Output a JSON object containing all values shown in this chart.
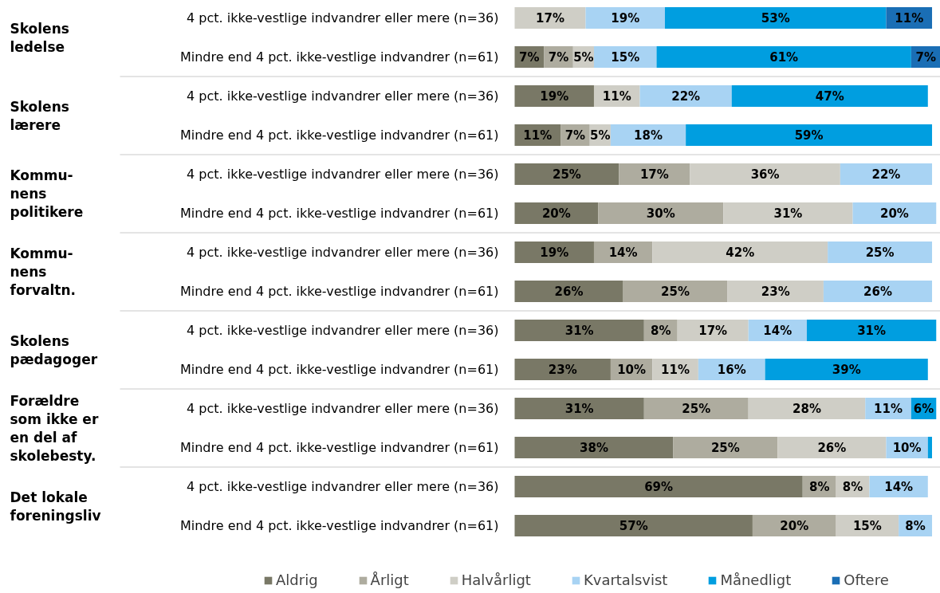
{
  "chart_data": {
    "type": "bar",
    "orientation": "horizontal",
    "stacked": true,
    "legend": "bottom",
    "grid": false,
    "tick_labels": "y",
    "xlim": [
      0,
      102
    ],
    "categories": [
      "4 pct. ikke-vestlige indvandrer eller mere (n=36)",
      "Mindre end 4 pct. ikke-vestlige indvandrer (n=61)",
      "4 pct. ikke-vestlige indvandrer eller mere (n=36)",
      "Mindre end 4 pct. ikke-vestlige indvandrer (n=61)",
      "4 pct. ikke-vestlige indvandrer eller mere (n=36)",
      "Mindre end 4 pct. ikke-vestlige indvandrer (n=61)",
      "4 pct. ikke-vestlige indvandrer eller mere (n=36)",
      "Mindre end 4 pct. ikke-vestlige indvandrer (n=61)",
      "4 pct. ikke-vestlige indvandrer eller mere (n=36)",
      "Mindre end 4 pct. ikke-vestlige indvandrer (n=61)",
      "4 pct. ikke-vestlige indvandrer eller mere (n=36)",
      "Mindre end 4 pct. ikke-vestlige indvandrer (n=61)",
      "4 pct. ikke-vestlige indvandrer eller mere (n=36)",
      "Mindre end 4 pct. ikke-vestlige indvandrer (n=61)"
    ],
    "annotations": [
      "Skolens\nledelse",
      "Skolens\nlærere",
      "Kommu-\nnens\npolitikere",
      "Kommu-\nnens\nforvaltn.",
      "Skolens\npædagoger",
      "Forældre\nsom ikke er\nen del af\nskolebesty.",
      "Det lokale\nforeningsliv"
    ],
    "series": [
      {
        "name": "Aldrig",
        "color": "#797866",
        "values": [
          0,
          7,
          19,
          11,
          25,
          20,
          19,
          26,
          31,
          23,
          31,
          38,
          69,
          57
        ],
        "value_labels": [
          null,
          "7%",
          "19%",
          "11%",
          "25%",
          "20%",
          "19%",
          "26%",
          "31%",
          "23%",
          "31%",
          "38%",
          "69%",
          "57%"
        ]
      },
      {
        "name": "Årligt",
        "color": "#aeac9f",
        "values": [
          0,
          7,
          0,
          7,
          17,
          30,
          14,
          25,
          8,
          10,
          25,
          25,
          8,
          20
        ],
        "value_labels": [
          null,
          "7%",
          null,
          "7%",
          "17%",
          "30%",
          "14%",
          "25%",
          "8%",
          "10%",
          "25%",
          "25%",
          "8%",
          "20%"
        ]
      },
      {
        "name": "Halvårligt",
        "color": "#cfcec6",
        "values": [
          17,
          5,
          11,
          5,
          36,
          31,
          42,
          23,
          17,
          11,
          28,
          26,
          8,
          15
        ],
        "value_labels": [
          "17%",
          "5%",
          "11%",
          "5%",
          "36%",
          "31%",
          "42%",
          "23%",
          "17%",
          "11%",
          "28%",
          "26%",
          "8%",
          "15%"
        ]
      },
      {
        "name": "Kvartalsvist",
        "color": "#a8d3f3",
        "values": [
          19,
          15,
          22,
          18,
          22,
          20,
          25,
          26,
          14,
          16,
          11,
          10,
          14,
          8
        ],
        "value_labels": [
          "19%",
          "15%",
          "22%",
          "18%",
          "22%",
          "20%",
          "25%",
          "26%",
          "14%",
          "16%",
          "11%",
          "10%",
          "14%",
          "8%"
        ]
      },
      {
        "name": "Månedligt",
        "color": "#009ee0",
        "values": [
          53,
          61,
          47,
          59,
          0,
          0,
          0,
          0,
          31,
          39,
          6,
          1,
          0,
          0
        ],
        "value_labels": [
          "53%",
          "61%",
          "47%",
          "59%",
          null,
          null,
          null,
          null,
          "31%",
          "39%",
          "6%",
          null,
          null,
          null
        ]
      },
      {
        "name": "Oftere",
        "color": "#1a6eb5",
        "values": [
          11,
          7,
          0,
          0,
          0,
          0,
          0,
          0,
          0,
          0,
          0,
          0,
          0,
          0
        ],
        "value_labels": [
          "11%",
          "7%",
          null,
          null,
          null,
          null,
          null,
          null,
          null,
          null,
          null,
          null,
          null,
          null
        ]
      }
    ]
  }
}
